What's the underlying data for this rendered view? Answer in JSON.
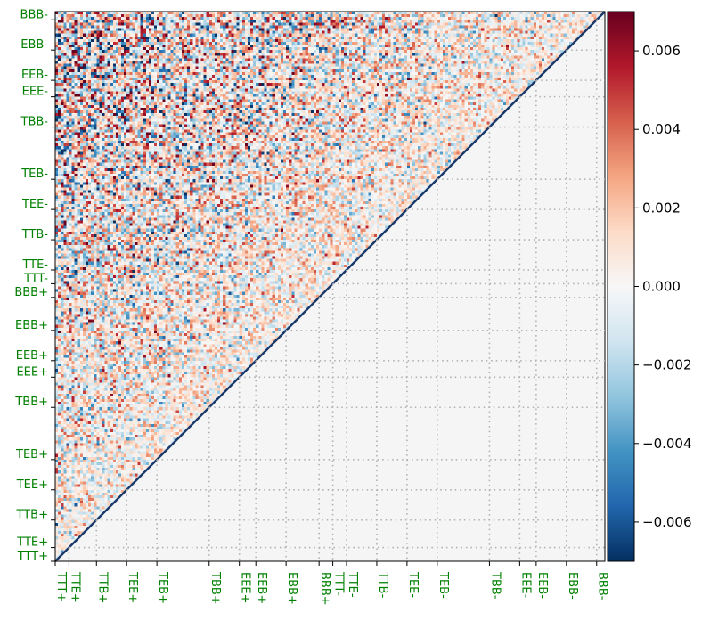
{
  "chart_data": {
    "type": "heatmap",
    "title": "",
    "xlabel": "",
    "ylabel": "",
    "matrix_shape": "upper-triangular (lower triangle masked)",
    "grid": "dotted, at block boundaries",
    "block_labels": [
      "TTT+",
      "TTE+",
      "TTB+",
      "TEE+",
      "TEB+",
      "TBB+",
      "EEE+",
      "EEB+",
      "EBB+",
      "BBB+",
      "TTT-",
      "TTE-",
      "TTB-",
      "TEE-",
      "TEB-",
      "TBB-",
      "EEE-",
      "EEB-",
      "EBB-",
      "BBB-"
    ],
    "block_boundaries": [
      0,
      0.025,
      0.075,
      0.13,
      0.185,
      0.28,
      0.335,
      0.365,
      0.42,
      0.48,
      0.505,
      0.53,
      0.585,
      0.64,
      0.695,
      0.79,
      0.845,
      0.875,
      0.93,
      0.985,
      1.0
    ],
    "label_color": "#008000",
    "colorbar": {
      "colormap": "RdBu_r",
      "range": [
        -0.007,
        0.007
      ],
      "ticks": [
        -0.006,
        -0.004,
        -0.002,
        0.0,
        0.002,
        0.004,
        0.006
      ],
      "tick_labels": [
        "−0.006",
        "−0.004",
        "−0.002",
        "0.000",
        "0.002",
        "0.004",
        "0.006"
      ]
    },
    "diagonal_color": "#1a3a6b",
    "masked_color": "#f5f5f5"
  }
}
